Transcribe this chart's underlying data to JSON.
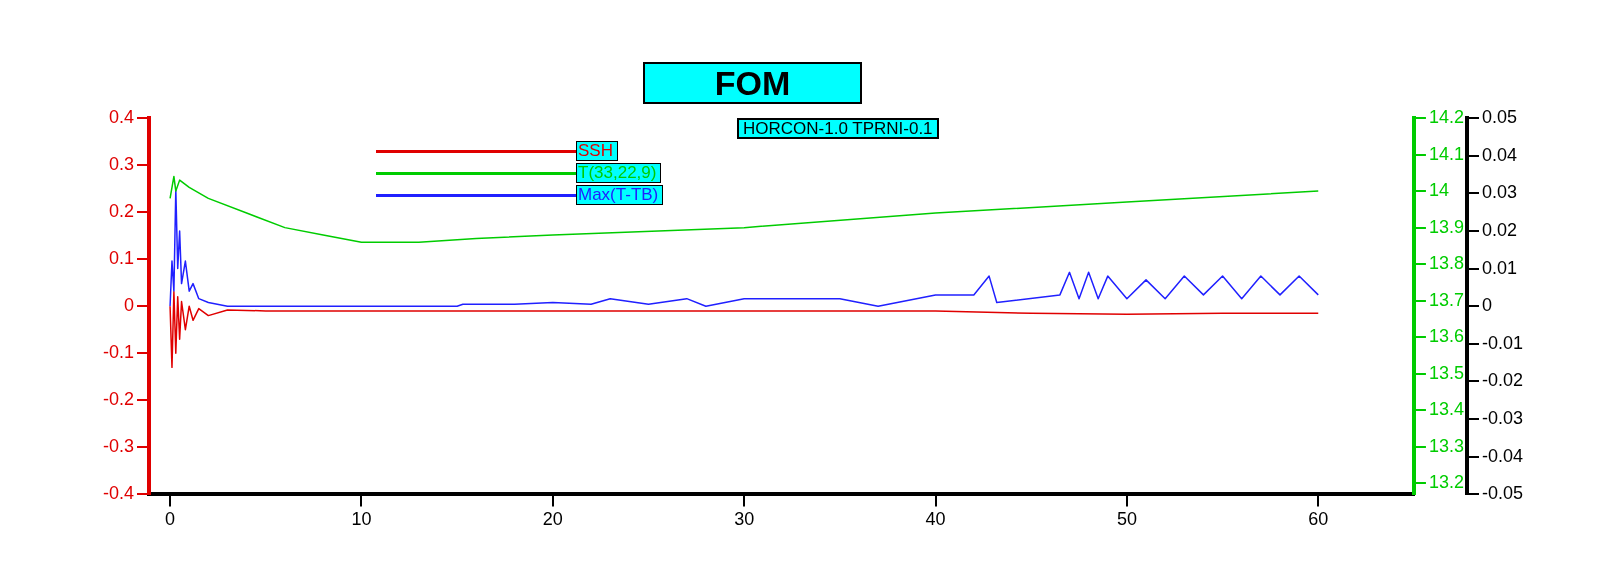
{
  "chart_data": {
    "type": "line",
    "title": "FOM",
    "subtitle": "HORCON-1.0 TPRNI-0.1",
    "legend": "top",
    "marker": "none",
    "xlim": [
      -1.1,
      65
    ],
    "xticks": [
      0,
      10,
      20,
      30,
      40,
      50,
      60
    ],
    "ylim": [
      -0.4,
      0.4
    ],
    "yticks": [
      -0.4,
      -0.3,
      -0.2,
      -0.1,
      0,
      0.1,
      0.2,
      0.3,
      0.4
    ],
    "y2lim": [
      13.17,
      14.2
    ],
    "y2ticks": [
      13.2,
      13.3,
      13.4,
      13.5,
      13.6,
      13.7,
      13.8,
      13.9,
      14,
      14.1,
      14.2
    ],
    "y3lim": [
      -0.05,
      0.05
    ],
    "y3ticks": [
      -0.05,
      -0.04,
      -0.03,
      -0.02,
      -0.01,
      0,
      0.01,
      0.02,
      0.03,
      0.04,
      0.05
    ],
    "series": [
      {
        "name": "SSH",
        "color": "#e00000",
        "x": [
          0,
          0.1,
          0.2,
          0.3,
          0.4,
          0.5,
          0.6,
          0.8,
          1,
          1.2,
          1.5,
          2,
          3,
          5,
          10,
          20,
          30,
          40,
          45,
          50,
          55,
          60
        ],
        "values": [
          0,
          -0.13,
          0.03,
          -0.1,
          0.02,
          -0.07,
          0.01,
          -0.05,
          0,
          -0.03,
          -0.005,
          -0.02,
          -0.008,
          -0.01,
          -0.01,
          -0.01,
          -0.01,
          -0.01,
          -0.015,
          -0.017,
          -0.015,
          -0.015
        ]
      },
      {
        "name": "T(33,22,9)",
        "color": "#00cc00",
        "axis": "y2",
        "x": [
          0,
          0.2,
          0.3,
          0.5,
          1,
          2,
          4,
          6,
          8,
          10,
          13,
          16,
          20,
          30,
          40,
          50,
          60
        ],
        "values": [
          13.98,
          14.04,
          14.0,
          14.03,
          14.01,
          13.98,
          13.94,
          13.9,
          13.88,
          13.86,
          13.86,
          13.87,
          13.88,
          13.9,
          13.94,
          13.97,
          14.0
        ]
      },
      {
        "name": "Max(T-TB)",
        "color": "#2020ff",
        "axis": "y3",
        "x": [
          0,
          0.1,
          0.2,
          0.3,
          0.4,
          0.5,
          0.6,
          0.8,
          1,
          1.2,
          1.5,
          2,
          3,
          15,
          15.3,
          18,
          20,
          22,
          23,
          25,
          27,
          28,
          30,
          35,
          37,
          40,
          42,
          42.8,
          43.2,
          46.5,
          47,
          47.5,
          48,
          48.5,
          49,
          50,
          51,
          52,
          53,
          54,
          55,
          56,
          57,
          58,
          59,
          60
        ],
        "values": [
          0,
          0.012,
          0.004,
          0.031,
          0.01,
          0.02,
          0.006,
          0.012,
          0.004,
          0.006,
          0.002,
          0.001,
          0,
          0,
          0.0005,
          0.0005,
          0.001,
          0.0005,
          0.002,
          0.0005,
          0.002,
          0,
          0.002,
          0.002,
          0,
          0.003,
          0.003,
          0.008,
          0.001,
          0.003,
          0.009,
          0.002,
          0.009,
          0.002,
          0.008,
          0.002,
          0.007,
          0.002,
          0.008,
          0.003,
          0.008,
          0.002,
          0.008,
          0.003,
          0.008,
          0.003
        ]
      }
    ]
  }
}
